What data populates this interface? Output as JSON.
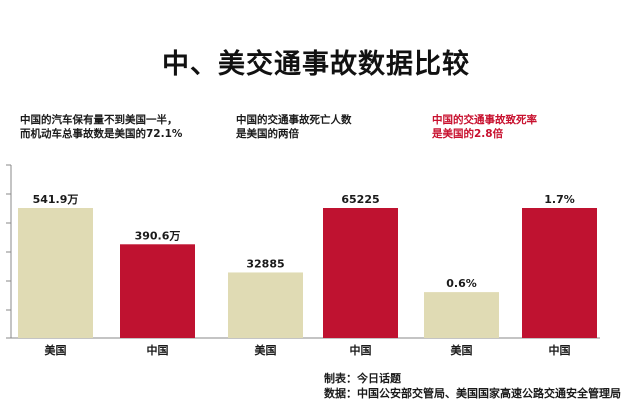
{
  "title": "中、美交通事故数据比较",
  "colors": {
    "usa": "#e0dbb4",
    "china": "#bf1230",
    "axis": "#888888",
    "highlight_text": "#c8102e"
  },
  "chart_data": [
    {
      "type": "bar",
      "annotation": [
        "中国的汽车保有量不到美国一半，",
        "而机动车总事故数是美国的72.1%"
      ],
      "categories": [
        "美国",
        "中国"
      ],
      "values": [
        541.9,
        390.6
      ],
      "value_labels": [
        "541.9万",
        "390.6万"
      ]
    },
    {
      "type": "bar",
      "annotation": [
        "中国的交通事故死亡人数",
        "是美国的两倍"
      ],
      "categories": [
        "美国",
        "中国"
      ],
      "values": [
        32885,
        65225
      ],
      "value_labels": [
        "32885",
        "65225"
      ]
    },
    {
      "type": "bar",
      "annotation": [
        "中国的交通事故致死率",
        "是美国的2.8倍"
      ],
      "annotation_highlight": true,
      "categories": [
        "美国",
        "中国"
      ],
      "values": [
        0.6,
        1.7
      ],
      "value_labels": [
        "0.6%",
        "1.7%"
      ]
    }
  ],
  "credits": {
    "maker": "制表：今日话题",
    "source": "数据：中国公安部交管局、美国国家高速公路交通安全管理局"
  }
}
